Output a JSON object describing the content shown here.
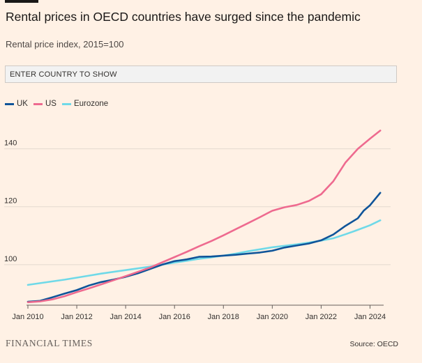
{
  "header": {
    "title": "Rental prices in OECD countries have surged since the pandemic",
    "subtitle": "Rental price index, 2015=100"
  },
  "search": {
    "placeholder": "ENTER COUNTRY TO SHOW"
  },
  "colors": {
    "UK": "#0f5499",
    "US": "#ee6a8f",
    "Eurozone": "#6fd9e8",
    "background": "#fff1e5",
    "grid": "#e3d9cf"
  },
  "footer": {
    "brand": "FINANCIAL TIMES",
    "source": "Source: OECD"
  },
  "chart_data": {
    "type": "line",
    "title": "Rental prices in OECD countries have surged since the pandemic",
    "subtitle": "Rental price index, 2015=100",
    "xlim": [
      2010,
      2024.5
    ],
    "ylim": [
      86,
      150
    ],
    "yticks": [
      100,
      120,
      140
    ],
    "xticks": [
      {
        "value": 2010,
        "label": "Jan 2010"
      },
      {
        "value": 2012,
        "label": "Jan 2012"
      },
      {
        "value": 2014,
        "label": "Jan 2014"
      },
      {
        "value": 2016,
        "label": "Jan 2016"
      },
      {
        "value": 2018,
        "label": "Jan 2018"
      },
      {
        "value": 2020,
        "label": "Jan 2020"
      },
      {
        "value": 2022,
        "label": "Jan 2022"
      },
      {
        "value": 2024,
        "label": "Jan 2024"
      }
    ],
    "legend_position": "top-left",
    "grid": "horizontal",
    "series": [
      {
        "name": "UK",
        "points": [
          [
            2010,
            87.2
          ],
          [
            2010.5,
            87.5
          ],
          [
            2011,
            88.7
          ],
          [
            2011.5,
            90.0
          ],
          [
            2012,
            91.2
          ],
          [
            2012.5,
            92.8
          ],
          [
            2013,
            94.0
          ],
          [
            2013.5,
            94.8
          ],
          [
            2014,
            95.8
          ],
          [
            2014.5,
            97.0
          ],
          [
            2015,
            98.5
          ],
          [
            2015.5,
            100.0
          ],
          [
            2016,
            101.2
          ],
          [
            2016.5,
            101.8
          ],
          [
            2017,
            102.7
          ],
          [
            2017.5,
            102.8
          ],
          [
            2018,
            103.1
          ],
          [
            2018.5,
            103.4
          ],
          [
            2019,
            103.8
          ],
          [
            2019.5,
            104.2
          ],
          [
            2020,
            104.8
          ],
          [
            2020.5,
            105.9
          ],
          [
            2021,
            106.6
          ],
          [
            2021.5,
            107.3
          ],
          [
            2022,
            108.4
          ],
          [
            2022.5,
            110.4
          ],
          [
            2023,
            113.4
          ],
          [
            2023.5,
            116.0
          ],
          [
            2023.75,
            118.7
          ],
          [
            2024,
            120.5
          ],
          [
            2024.42,
            124.8
          ]
        ]
      },
      {
        "name": "US",
        "points": [
          [
            2010,
            87.0
          ],
          [
            2010.5,
            87.3
          ],
          [
            2011,
            88.0
          ],
          [
            2011.5,
            89.1
          ],
          [
            2012,
            90.5
          ],
          [
            2012.5,
            91.8
          ],
          [
            2013,
            93.2
          ],
          [
            2013.5,
            94.6
          ],
          [
            2014,
            96.0
          ],
          [
            2014.5,
            97.5
          ],
          [
            2015,
            99.0
          ],
          [
            2015.5,
            100.8
          ],
          [
            2016,
            102.6
          ],
          [
            2016.5,
            104.4
          ],
          [
            2017,
            106.3
          ],
          [
            2017.5,
            108.1
          ],
          [
            2018,
            110.1
          ],
          [
            2018.5,
            112.2
          ],
          [
            2019,
            114.3
          ],
          [
            2019.5,
            116.4
          ],
          [
            2020,
            118.6
          ],
          [
            2020.5,
            119.8
          ],
          [
            2021,
            120.6
          ],
          [
            2021.5,
            122.0
          ],
          [
            2022,
            124.3
          ],
          [
            2022.5,
            128.8
          ],
          [
            2023,
            135.3
          ],
          [
            2023.5,
            140.0
          ],
          [
            2024,
            143.5
          ],
          [
            2024.42,
            146.3
          ]
        ]
      },
      {
        "name": "Eurozone",
        "points": [
          [
            2010,
            93.0
          ],
          [
            2010.5,
            93.6
          ],
          [
            2011,
            94.2
          ],
          [
            2011.5,
            94.8
          ],
          [
            2012,
            95.5
          ],
          [
            2012.5,
            96.2
          ],
          [
            2013,
            96.9
          ],
          [
            2013.5,
            97.5
          ],
          [
            2014,
            98.1
          ],
          [
            2014.5,
            98.7
          ],
          [
            2015,
            99.3
          ],
          [
            2015.5,
            100.0
          ],
          [
            2016,
            100.7
          ],
          [
            2016.5,
            101.3
          ],
          [
            2017,
            102.0
          ],
          [
            2017.5,
            102.5
          ],
          [
            2018,
            103.1
          ],
          [
            2018.5,
            103.8
          ],
          [
            2019,
            104.6
          ],
          [
            2019.5,
            105.3
          ],
          [
            2020,
            106.0
          ],
          [
            2020.5,
            106.5
          ],
          [
            2021,
            107.0
          ],
          [
            2021.5,
            107.6
          ],
          [
            2022,
            108.3
          ],
          [
            2022.5,
            109.1
          ],
          [
            2023,
            110.5
          ],
          [
            2023.5,
            112.0
          ],
          [
            2024,
            113.6
          ],
          [
            2024.42,
            115.3
          ]
        ]
      }
    ]
  }
}
